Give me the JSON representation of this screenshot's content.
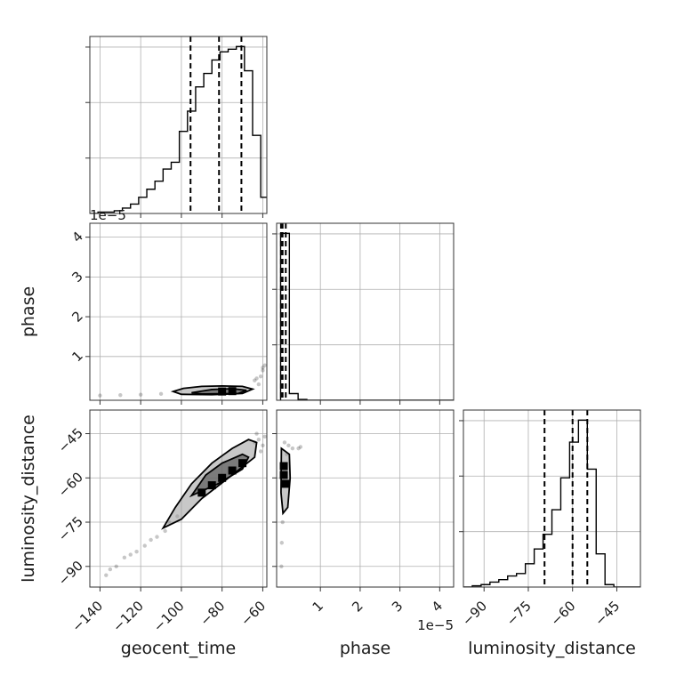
{
  "chart_data": {
    "type": "corner",
    "parameters": [
      {
        "name": "geocent_time",
        "label": "geocent_time",
        "range": [
          -145,
          -58
        ],
        "ticks": [
          -140,
          -120,
          -100,
          -80,
          -60
        ]
      },
      {
        "name": "phase",
        "label": "phase",
        "range": [
          -1e-06,
          4.35e-05
        ],
        "ticks": [
          1e-05,
          2e-05,
          3e-05,
          4e-05
        ],
        "tick_labels": [
          "1",
          "2",
          "3",
          "4"
        ],
        "offset_text": "1e−5"
      },
      {
        "name": "luminosity_distance",
        "label": "luminosity_distance",
        "range": [
          -97,
          -37
        ],
        "ticks": [
          -90,
          -75,
          -60,
          -45
        ]
      }
    ],
    "histograms": [
      {
        "parameter": "geocent_time",
        "bin_edges": [
          -145,
          -141,
          -137,
          -133,
          -129,
          -125,
          -121,
          -117,
          -113,
          -109,
          -105,
          -101,
          -97,
          -93,
          -89,
          -85,
          -81,
          -77,
          -73,
          -69,
          -65,
          -61,
          -57
        ],
        "counts": [
          0,
          1,
          1,
          2,
          4,
          7,
          12,
          18,
          24,
          33,
          38,
          61,
          76,
          94,
          104,
          114,
          120,
          122,
          124,
          106,
          58,
          12
        ],
        "quantiles": [
          -95.5,
          -81.5,
          -70.5
        ]
      },
      {
        "parameter": "phase",
        "bin_edges": [
          0,
          2.2e-06,
          4.4e-06,
          6.6e-06,
          8.8e-06,
          1.1e-05,
          1.32e-05,
          1.54e-05,
          1.76e-05,
          1.98e-05,
          2.2e-05,
          2.42e-05,
          2.64e-05,
          2.86e-05,
          3.08e-05,
          3.3e-05,
          3.52e-05,
          3.74e-05,
          3.96e-05,
          4.18e-05,
          4.4e-05
        ],
        "counts": [
          200,
          8,
          1,
          0,
          0,
          0,
          0,
          0,
          0,
          0,
          0,
          0,
          0,
          0,
          0,
          0,
          0,
          0,
          0,
          0
        ],
        "quantiles": [
          1e-07,
          5e-07,
          1.3e-06
        ]
      },
      {
        "parameter": "luminosity_distance",
        "bin_edges": [
          -97,
          -94,
          -91,
          -88,
          -85,
          -82,
          -79,
          -76,
          -73,
          -70,
          -67,
          -64,
          -61,
          -58,
          -55,
          -52,
          -49,
          -46,
          -43,
          -40,
          -37
        ],
        "counts": [
          0,
          1,
          2,
          4,
          6,
          9,
          11,
          19,
          31,
          43,
          63,
          89,
          118,
          136,
          96,
          27,
          2,
          0,
          0,
          0
        ],
        "quantiles": [
          -69.5,
          -60.0,
          -55.0
        ]
      }
    ],
    "density_2d": [
      {
        "x": "geocent_time",
        "y": "phase",
        "contours": [
          [
            [
              -104,
              1.2e-06
            ],
            [
              -99,
              2e-06
            ],
            [
              -90,
              2.5e-06
            ],
            [
              -80,
              2.6e-06
            ],
            [
              -70,
              2.5e-06
            ],
            [
              -65,
              1.8e-06
            ],
            [
              -70,
              7e-07
            ],
            [
              -85,
              4e-07
            ],
            [
              -100,
              5e-07
            ],
            [
              -104,
              1.2e-06
            ]
          ],
          [
            [
              -95,
              9e-07
            ],
            [
              -85,
              1.7e-06
            ],
            [
              -75,
              1.9e-06
            ],
            [
              -68,
              1.5e-06
            ],
            [
              -72,
              7e-07
            ],
            [
              -90,
              6e-07
            ],
            [
              -95,
              9e-07
            ]
          ]
        ],
        "dense_cells": [
          [
            -75,
            1.3e-06
          ],
          [
            -80,
            1.2e-06
          ]
        ],
        "sample_points": [
          [
            -140,
            2e-07
          ],
          [
            -130,
            3e-07
          ],
          [
            -120,
            4e-07
          ],
          [
            -110,
            6e-07
          ],
          [
            -62,
            3e-06
          ],
          [
            -61,
            5e-06
          ],
          [
            -60,
            6.5e-06
          ],
          [
            -63,
            4.5e-06
          ],
          [
            -60,
            7.2e-06
          ],
          [
            -59,
            7.8e-06
          ],
          [
            -64,
            4e-06
          ]
        ]
      },
      {
        "x": "geocent_time",
        "y": "luminosity_distance",
        "contours": [
          [
            [
              -109,
              -77
            ],
            [
              -103,
              -70
            ],
            [
              -95,
              -62
            ],
            [
              -85,
              -55
            ],
            [
              -75,
              -50
            ],
            [
              -67,
              -47
            ],
            [
              -63,
              -48
            ],
            [
              -64,
              -53
            ],
            [
              -75,
              -59
            ],
            [
              -90,
              -67
            ],
            [
              -100,
              -74
            ],
            [
              -109,
              -77
            ]
          ],
          [
            [
              -95,
              -66
            ],
            [
              -88,
              -59
            ],
            [
              -80,
              -55
            ],
            [
              -70,
              -52
            ],
            [
              -67,
              -53
            ],
            [
              -70,
              -57
            ],
            [
              -82,
              -62
            ],
            [
              -95,
              -66
            ]
          ]
        ],
        "dense_cells": [
          [
            -80,
            -60
          ],
          [
            -85,
            -62.5
          ],
          [
            -75,
            -57.5
          ],
          [
            -70,
            -55
          ],
          [
            -90,
            -65
          ]
        ],
        "sample_points": [
          [
            -137,
            -93
          ],
          [
            -135,
            -91
          ],
          [
            -132,
            -90
          ],
          [
            -128,
            -87
          ],
          [
            -125,
            -86
          ],
          [
            -122,
            -85
          ],
          [
            -118,
            -83
          ],
          [
            -115,
            -81
          ],
          [
            -112,
            -80
          ],
          [
            -108,
            -78
          ],
          [
            -106,
            -75
          ],
          [
            -102,
            -73
          ],
          [
            -62,
            -47
          ],
          [
            -60,
            -49
          ],
          [
            -59,
            -46
          ],
          [
            -61,
            -51
          ],
          [
            -63,
            -45
          ],
          [
            -64,
            -48
          ]
        ]
      },
      {
        "x": "phase",
        "y": "luminosity_distance",
        "contours": [
          [
            [
              2e-07,
              -50
            ],
            [
              2.2e-06,
              -52
            ],
            [
              2.4e-06,
              -60
            ],
            [
              1.8e-06,
              -70
            ],
            [
              6e-07,
              -72
            ],
            [
              1e-07,
              -65
            ],
            [
              2e-07,
              -50
            ]
          ]
        ],
        "dense_cells": [
          [
            8e-07,
            -56
          ],
          [
            8e-07,
            -59
          ],
          [
            1.2e-06,
            -62
          ]
        ],
        "sample_points": [
          [
            1e-06,
            -48
          ],
          [
            2e-06,
            -49
          ],
          [
            3e-06,
            -50
          ],
          [
            4.5e-06,
            -50
          ],
          [
            5e-06,
            -49.5
          ],
          [
            1.5e-06,
            -52
          ],
          [
            5e-07,
            -75
          ],
          [
            3e-07,
            -82
          ],
          [
            2e-07,
            -90
          ]
        ]
      }
    ]
  }
}
